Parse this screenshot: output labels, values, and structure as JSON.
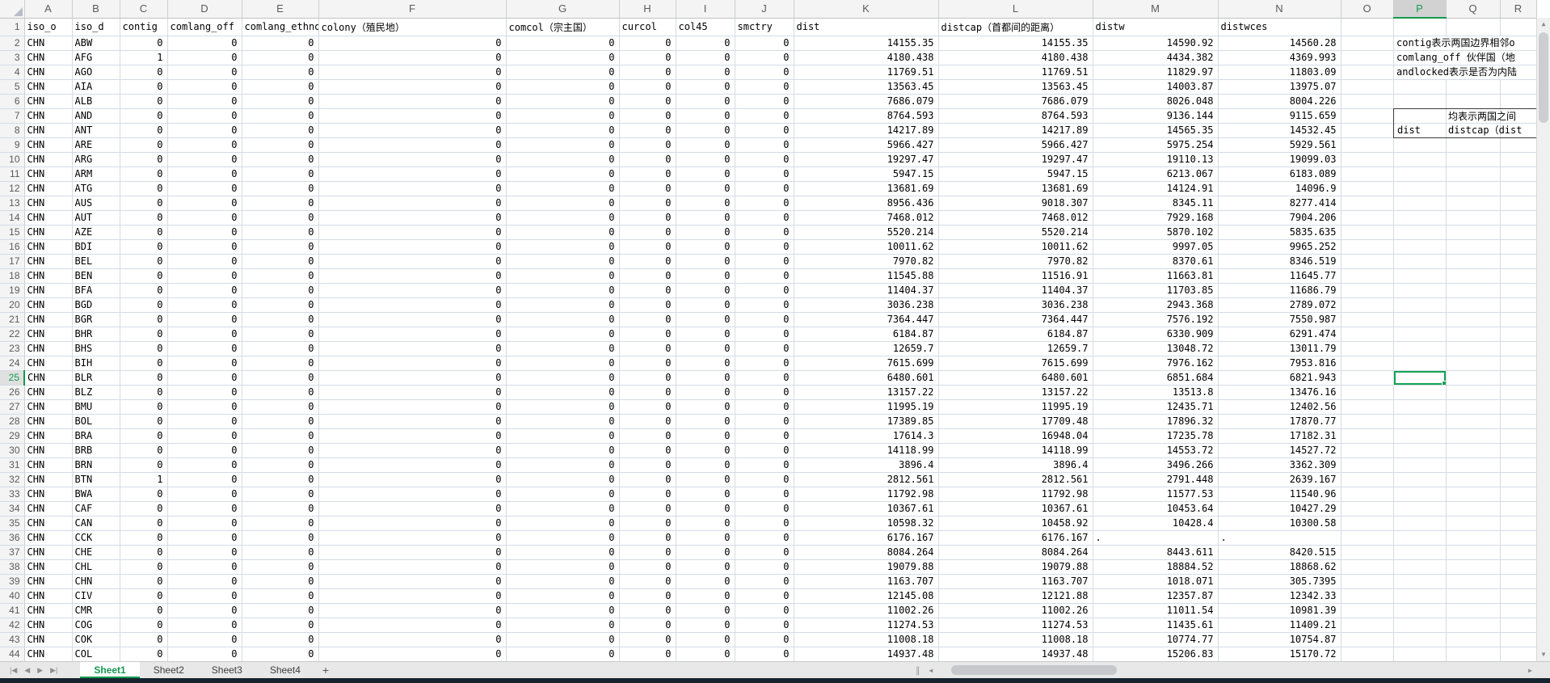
{
  "sheet": {
    "column_letters": [
      "A",
      "B",
      "C",
      "D",
      "E",
      "F",
      "G",
      "H",
      "I",
      "J",
      "K",
      "L",
      "M",
      "N",
      "O",
      "P",
      "Q",
      "R"
    ],
    "header_row": [
      "iso_o",
      "iso_d",
      "contig",
      "comlang_off",
      "comlang_ethno",
      "colony（殖民地）",
      "comcol（宗主国）",
      "curcol",
      "col45",
      "smctry",
      "dist",
      "distcap（首都间的距离）",
      "distw",
      "distwces"
    ],
    "rows": [
      [
        "CHN",
        "ABW",
        "0",
        "0",
        "0",
        "0",
        "0",
        "0",
        "0",
        "0",
        "14155.35",
        "14155.35",
        "14590.92",
        "14560.28"
      ],
      [
        "CHN",
        "AFG",
        "1",
        "0",
        "0",
        "0",
        "0",
        "0",
        "0",
        "0",
        "4180.438",
        "4180.438",
        "4434.382",
        "4369.993"
      ],
      [
        "CHN",
        "AGO",
        "0",
        "0",
        "0",
        "0",
        "0",
        "0",
        "0",
        "0",
        "11769.51",
        "11769.51",
        "11829.97",
        "11803.09"
      ],
      [
        "CHN",
        "AIA",
        "0",
        "0",
        "0",
        "0",
        "0",
        "0",
        "0",
        "0",
        "13563.45",
        "13563.45",
        "14003.87",
        "13975.07"
      ],
      [
        "CHN",
        "ALB",
        "0",
        "0",
        "0",
        "0",
        "0",
        "0",
        "0",
        "0",
        "7686.079",
        "7686.079",
        "8026.048",
        "8004.226"
      ],
      [
        "CHN",
        "AND",
        "0",
        "0",
        "0",
        "0",
        "0",
        "0",
        "0",
        "0",
        "8764.593",
        "8764.593",
        "9136.144",
        "9115.659"
      ],
      [
        "CHN",
        "ANT",
        "0",
        "0",
        "0",
        "0",
        "0",
        "0",
        "0",
        "0",
        "14217.89",
        "14217.89",
        "14565.35",
        "14532.45"
      ],
      [
        "CHN",
        "ARE",
        "0",
        "0",
        "0",
        "0",
        "0",
        "0",
        "0",
        "0",
        "5966.427",
        "5966.427",
        "5975.254",
        "5929.561"
      ],
      [
        "CHN",
        "ARG",
        "0",
        "0",
        "0",
        "0",
        "0",
        "0",
        "0",
        "0",
        "19297.47",
        "19297.47",
        "19110.13",
        "19099.03"
      ],
      [
        "CHN",
        "ARM",
        "0",
        "0",
        "0",
        "0",
        "0",
        "0",
        "0",
        "0",
        "5947.15",
        "5947.15",
        "6213.067",
        "6183.089"
      ],
      [
        "CHN",
        "ATG",
        "0",
        "0",
        "0",
        "0",
        "0",
        "0",
        "0",
        "0",
        "13681.69",
        "13681.69",
        "14124.91",
        "14096.9"
      ],
      [
        "CHN",
        "AUS",
        "0",
        "0",
        "0",
        "0",
        "0",
        "0",
        "0",
        "0",
        "8956.436",
        "9018.307",
        "8345.11",
        "8277.414"
      ],
      [
        "CHN",
        "AUT",
        "0",
        "0",
        "0",
        "0",
        "0",
        "0",
        "0",
        "0",
        "7468.012",
        "7468.012",
        "7929.168",
        "7904.206"
      ],
      [
        "CHN",
        "AZE",
        "0",
        "0",
        "0",
        "0",
        "0",
        "0",
        "0",
        "0",
        "5520.214",
        "5520.214",
        "5870.102",
        "5835.635"
      ],
      [
        "CHN",
        "BDI",
        "0",
        "0",
        "0",
        "0",
        "0",
        "0",
        "0",
        "0",
        "10011.62",
        "10011.62",
        "9997.05",
        "9965.252"
      ],
      [
        "CHN",
        "BEL",
        "0",
        "0",
        "0",
        "0",
        "0",
        "0",
        "0",
        "0",
        "7970.82",
        "7970.82",
        "8370.61",
        "8346.519"
      ],
      [
        "CHN",
        "BEN",
        "0",
        "0",
        "0",
        "0",
        "0",
        "0",
        "0",
        "0",
        "11545.88",
        "11516.91",
        "11663.81",
        "11645.77"
      ],
      [
        "CHN",
        "BFA",
        "0",
        "0",
        "0",
        "0",
        "0",
        "0",
        "0",
        "0",
        "11404.37",
        "11404.37",
        "11703.85",
        "11686.79"
      ],
      [
        "CHN",
        "BGD",
        "0",
        "0",
        "0",
        "0",
        "0",
        "0",
        "0",
        "0",
        "3036.238",
        "3036.238",
        "2943.368",
        "2789.072"
      ],
      [
        "CHN",
        "BGR",
        "0",
        "0",
        "0",
        "0",
        "0",
        "0",
        "0",
        "0",
        "7364.447",
        "7364.447",
        "7576.192",
        "7550.987"
      ],
      [
        "CHN",
        "BHR",
        "0",
        "0",
        "0",
        "0",
        "0",
        "0",
        "0",
        "0",
        "6184.87",
        "6184.87",
        "6330.909",
        "6291.474"
      ],
      [
        "CHN",
        "BHS",
        "0",
        "0",
        "0",
        "0",
        "0",
        "0",
        "0",
        "0",
        "12659.7",
        "12659.7",
        "13048.72",
        "13011.79"
      ],
      [
        "CHN",
        "BIH",
        "0",
        "0",
        "0",
        "0",
        "0",
        "0",
        "0",
        "0",
        "7615.699",
        "7615.699",
        "7976.162",
        "7953.816"
      ],
      [
        "CHN",
        "BLR",
        "0",
        "0",
        "0",
        "0",
        "0",
        "0",
        "0",
        "0",
        "6480.601",
        "6480.601",
        "6851.684",
        "6821.943"
      ],
      [
        "CHN",
        "BLZ",
        "0",
        "0",
        "0",
        "0",
        "0",
        "0",
        "0",
        "0",
        "13157.22",
        "13157.22",
        "13513.8",
        "13476.16"
      ],
      [
        "CHN",
        "BMU",
        "0",
        "0",
        "0",
        "0",
        "0",
        "0",
        "0",
        "0",
        "11995.19",
        "11995.19",
        "12435.71",
        "12402.56"
      ],
      [
        "CHN",
        "BOL",
        "0",
        "0",
        "0",
        "0",
        "0",
        "0",
        "0",
        "0",
        "17389.85",
        "17709.48",
        "17896.32",
        "17870.77"
      ],
      [
        "CHN",
        "BRA",
        "0",
        "0",
        "0",
        "0",
        "0",
        "0",
        "0",
        "0",
        "17614.3",
        "16948.04",
        "17235.78",
        "17182.31"
      ],
      [
        "CHN",
        "BRB",
        "0",
        "0",
        "0",
        "0",
        "0",
        "0",
        "0",
        "0",
        "14118.99",
        "14118.99",
        "14553.72",
        "14527.72"
      ],
      [
        "CHN",
        "BRN",
        "0",
        "0",
        "0",
        "0",
        "0",
        "0",
        "0",
        "0",
        "3896.4",
        "3896.4",
        "3496.266",
        "3362.309"
      ],
      [
        "CHN",
        "BTN",
        "1",
        "0",
        "0",
        "0",
        "0",
        "0",
        "0",
        "0",
        "2812.561",
        "2812.561",
        "2791.448",
        "2639.167"
      ],
      [
        "CHN",
        "BWA",
        "0",
        "0",
        "0",
        "0",
        "0",
        "0",
        "0",
        "0",
        "11792.98",
        "11792.98",
        "11577.53",
        "11540.96"
      ],
      [
        "CHN",
        "CAF",
        "0",
        "0",
        "0",
        "0",
        "0",
        "0",
        "0",
        "0",
        "10367.61",
        "10367.61",
        "10453.64",
        "10427.29"
      ],
      [
        "CHN",
        "CAN",
        "0",
        "0",
        "0",
        "0",
        "0",
        "0",
        "0",
        "0",
        "10598.32",
        "10458.92",
        "10428.4",
        "10300.58"
      ],
      [
        "CHN",
        "CCK",
        "0",
        "0",
        "0",
        "0",
        "0",
        "0",
        "0",
        "0",
        "6176.167",
        "6176.167",
        ".",
        "."
      ],
      [
        "CHN",
        "CHE",
        "0",
        "0",
        "0",
        "0",
        "0",
        "0",
        "0",
        "0",
        "8084.264",
        "8084.264",
        "8443.611",
        "8420.515"
      ],
      [
        "CHN",
        "CHL",
        "0",
        "0",
        "0",
        "0",
        "0",
        "0",
        "0",
        "0",
        "19079.88",
        "19079.88",
        "18884.52",
        "18868.62"
      ],
      [
        "CHN",
        "CHN",
        "0",
        "0",
        "0",
        "0",
        "0",
        "0",
        "0",
        "0",
        "1163.707",
        "1163.707",
        "1018.071",
        "305.7395"
      ],
      [
        "CHN",
        "CIV",
        "0",
        "0",
        "0",
        "0",
        "0",
        "0",
        "0",
        "0",
        "12145.08",
        "12121.88",
        "12357.87",
        "12342.33"
      ],
      [
        "CHN",
        "CMR",
        "0",
        "0",
        "0",
        "0",
        "0",
        "0",
        "0",
        "0",
        "11002.26",
        "11002.26",
        "11011.54",
        "10981.39"
      ],
      [
        "CHN",
        "COG",
        "0",
        "0",
        "0",
        "0",
        "0",
        "0",
        "0",
        "0",
        "11274.53",
        "11274.53",
        "11435.61",
        "11409.21"
      ],
      [
        "CHN",
        "COK",
        "0",
        "0",
        "0",
        "0",
        "0",
        "0",
        "0",
        "0",
        "11008.18",
        "11008.18",
        "10774.77",
        "10754.87"
      ],
      [
        "CHN",
        "COL",
        "0",
        "0",
        "0",
        "0",
        "0",
        "0",
        "0",
        "0",
        "14937.48",
        "14937.48",
        "15206.83",
        "15170.72"
      ]
    ]
  },
  "selection": {
    "active_cell": "P25",
    "row": 25,
    "column": "P"
  },
  "annotations": {
    "note1": "contig表示两国边界相邻o",
    "note2": "comlang_off 伙伴国（地",
    "note3": "andlocked表示是否为内陆",
    "box_line1": "均表示两国之间",
    "box_dist": "dist",
    "box_distcap": "distcap（dist"
  },
  "tabbar": {
    "nav": {
      "first": "|◀",
      "prev": "◀",
      "next": "▶",
      "last": "▶|"
    },
    "tabs": [
      {
        "label": "Sheet1",
        "active": true
      },
      {
        "label": "Sheet2",
        "active": false
      },
      {
        "label": "Sheet3",
        "active": false
      },
      {
        "label": "Sheet4",
        "active": false
      }
    ],
    "add_label": "+"
  },
  "scrollbars": {
    "up": "▲",
    "down": "▼",
    "left": "◀",
    "right": "▶",
    "splitter": "∥"
  },
  "colors": {
    "accent_green": "#149a50",
    "selection_green": "#15a356",
    "gridline": "#d5dbe5"
  }
}
